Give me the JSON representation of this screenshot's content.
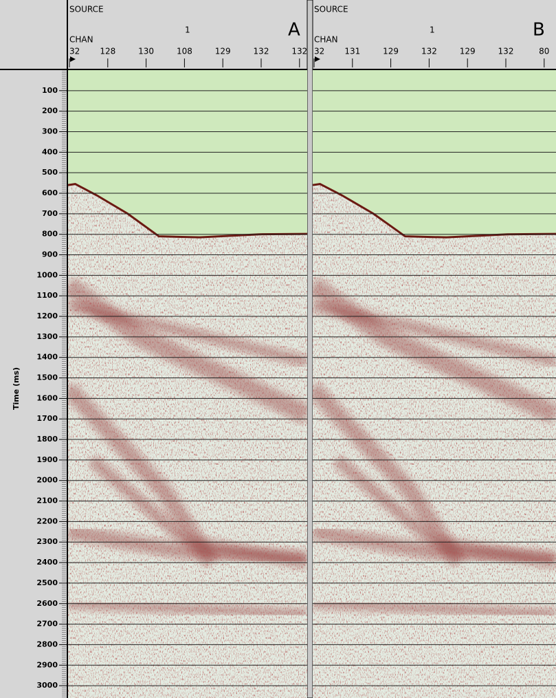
{
  "time_axis": {
    "label": "Time (ms)",
    "lim": [
      0,
      3060
    ],
    "ticks": [
      100,
      200,
      300,
      400,
      500,
      600,
      700,
      800,
      900,
      1000,
      1100,
      1200,
      1300,
      1400,
      1500,
      1600,
      1700,
      1800,
      1900,
      2000,
      2100,
      2200,
      2300,
      2400,
      2500,
      2600,
      2700,
      2800,
      2900,
      3000
    ]
  },
  "panels": [
    {
      "label": "A",
      "source_label": "SOURCE",
      "source": "1",
      "chan_label": "CHAN",
      "channels": [
        "32",
        "128",
        "130",
        "108",
        "129",
        "132",
        "132"
      ]
    },
    {
      "label": "B",
      "source_label": "SOURCE",
      "source": "1",
      "chan_label": "CHAN",
      "channels": [
        "32",
        "131",
        "129",
        "132",
        "129",
        "132",
        "80"
      ]
    }
  ]
}
